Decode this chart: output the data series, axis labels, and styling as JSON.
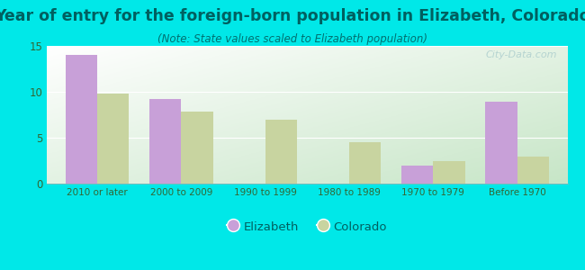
{
  "title": "Year of entry for the foreign-born population in Elizabeth, Colorado",
  "subtitle": "(Note: State values scaled to Elizabeth population)",
  "categories": [
    "2010 or later",
    "2000 to 2009",
    "1990 to 1999",
    "1980 to 1989",
    "1970 to 1979",
    "Before 1970"
  ],
  "elizabeth_values": [
    14.0,
    9.2,
    0,
    0,
    2.0,
    8.9
  ],
  "colorado_values": [
    9.8,
    7.8,
    7.0,
    4.5,
    2.5,
    2.9
  ],
  "elizabeth_color": "#c8a0d8",
  "colorado_color": "#c8d4a0",
  "background_color": "#00e8e8",
  "ylim": [
    0,
    15
  ],
  "yticks": [
    0,
    5,
    10,
    15
  ],
  "bar_width": 0.38,
  "legend_elizabeth": "Elizabeth",
  "legend_colorado": "Colorado",
  "title_fontsize": 12.5,
  "subtitle_fontsize": 8.5,
  "title_color": "#006060",
  "subtitle_color": "#007070",
  "tick_color": "#336633",
  "watermark": "City-Data.com"
}
